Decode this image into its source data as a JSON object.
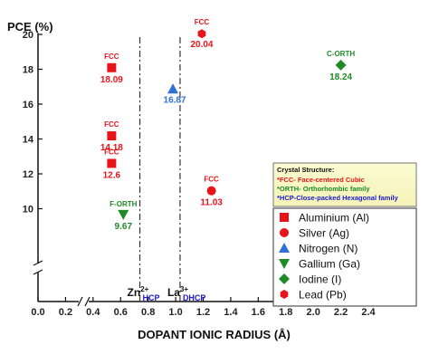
{
  "chart_data": {
    "type": "scatter",
    "xlabel": "DOPANT IONIC RADIUS (Å)",
    "ylabel": "PCE (%)",
    "xlim": [
      0,
      2.4
    ],
    "ylim": [
      8.5,
      21
    ],
    "x_ticks": [
      "0.0",
      "0.2",
      "0.4",
      "0.6",
      "0.8",
      "1.0",
      "1.2",
      "1.4",
      "1.6",
      "1.8",
      "2.0",
      "2.2",
      "2.4"
    ],
    "y_ticks": [
      "10",
      "12",
      "14",
      "16",
      "18",
      "20"
    ],
    "axis_breaks": true,
    "series": [
      {
        "name": "Aluminium (Al)",
        "marker": "square",
        "color": "#e8141b",
        "points": [
          {
            "x": 0.535,
            "y": 18.09,
            "label": "18.09",
            "tag": "FCC"
          },
          {
            "x": 0.535,
            "y": 14.18,
            "label": "14.18",
            "tag": "FCC"
          },
          {
            "x": 0.535,
            "y": 12.6,
            "label": "12.6",
            "tag": "FCC"
          }
        ]
      },
      {
        "name": "Silver (Ag)",
        "marker": "circle",
        "color": "#e8141b",
        "points": [
          {
            "x": 1.26,
            "y": 11.03,
            "label": "11.03",
            "tag": "FCC"
          }
        ]
      },
      {
        "name": "Nitrogen (N)",
        "marker": "triangle-up",
        "color": "#2f6fd6",
        "points": [
          {
            "x": 0.98,
            "y": 16.87,
            "label": "16.87",
            "tag": ""
          }
        ]
      },
      {
        "name": "Gallium (Ga)",
        "marker": "triangle-down",
        "color": "#1f8a26",
        "points": [
          {
            "x": 0.62,
            "y": 9.67,
            "label": "9.67",
            "tag": "F-ORTH"
          }
        ]
      },
      {
        "name": "Iodine (I)",
        "marker": "diamond",
        "color": "#1f8a26",
        "points": [
          {
            "x": 2.2,
            "y": 18.24,
            "label": "18.24",
            "tag": "C-ORTH"
          }
        ]
      },
      {
        "name": "Lead (Pb)",
        "marker": "hexagon",
        "color": "#e8141b",
        "points": [
          {
            "x": 1.19,
            "y": 20.04,
            "label": "20.04",
            "tag": "FCC"
          }
        ]
      }
    ],
    "reference_lines": [
      {
        "x": 0.74,
        "ion": "Zn",
        "charge": "2+",
        "structure": "HCP"
      },
      {
        "x": 1.032,
        "ion": "La",
        "charge": "3+",
        "structure": "DHCP"
      }
    ],
    "crystal_structure_box": {
      "title": "Crystal Structure:",
      "lines": [
        {
          "text": "*FCC- Face-centered Cubic",
          "color": "#e8141b"
        },
        {
          "text": "*ORTH- Orthorhombic family",
          "color": "#1f8a26"
        },
        {
          "text": "*HCP-Close-packed Hexagonal family",
          "color": "#1a1acf"
        }
      ]
    },
    "legend_position": "right"
  }
}
